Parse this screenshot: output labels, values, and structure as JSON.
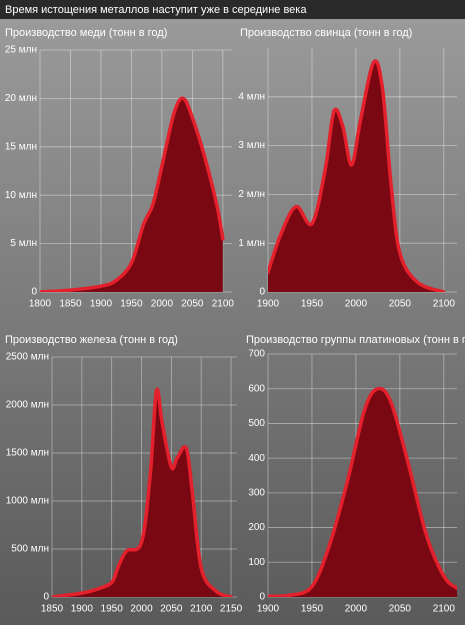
{
  "header": {
    "title": "Время истощения металлов наступит уже в середине века"
  },
  "chart_data": [
    {
      "type": "area",
      "title": "Производство меди (тонн в год)",
      "x": [
        1800,
        1850,
        1900,
        1925,
        1950,
        1970,
        1985,
        2000,
        2020,
        2035,
        2050,
        2070,
        2090,
        2100
      ],
      "values": [
        0,
        0.2,
        0.6,
        1.2,
        3,
        7,
        9,
        13,
        18.5,
        20,
        18,
        14,
        9,
        5.5
      ],
      "xlim": [
        1800,
        2115
      ],
      "ylim": [
        0,
        25
      ],
      "xticks": [
        1800,
        1850,
        1900,
        1950,
        2000,
        2050,
        2100
      ],
      "yticks": [
        0,
        {
          "value": 5,
          "label": "5 млн"
        },
        {
          "value": 10,
          "label": "10 млн"
        },
        {
          "value": 15,
          "label": "15 млн"
        },
        {
          "value": 20,
          "label": "20 млн"
        },
        {
          "value": 25,
          "label": "25 млн"
        }
      ],
      "color": "#7a0812",
      "line_color": "#e4202c",
      "grid": true
    },
    {
      "type": "area",
      "title": "Производство свинца (тонн в год)",
      "x": [
        1900,
        1915,
        1932,
        1950,
        1965,
        1975,
        1985,
        1995,
        2005,
        2020,
        2030,
        2040,
        2050,
        2070,
        2100
      ],
      "values": [
        0.4,
        1.2,
        1.75,
        1.4,
        2.5,
        3.7,
        3.4,
        2.6,
        3.5,
        4.7,
        4.2,
        2.2,
        0.8,
        0.2,
        0
      ],
      "xlim": [
        1900,
        2115
      ],
      "ylim": [
        0,
        5
      ],
      "xticks": [
        1900,
        1950,
        2000,
        2050,
        2100
      ],
      "yticks": [
        0,
        {
          "value": 1,
          "label": "1 млн"
        },
        {
          "value": 2,
          "label": "2 млн"
        },
        {
          "value": 3,
          "label": "3 млн"
        },
        {
          "value": 4,
          "label": "4 млн"
        }
      ],
      "color": "#7a0812",
      "line_color": "#e4202c",
      "grid": true
    },
    {
      "type": "area",
      "title": "Производство железа (тонн в год)",
      "x": [
        1850,
        1900,
        1925,
        1950,
        1960,
        1975,
        2000,
        2015,
        2025,
        2035,
        2050,
        2060,
        2075,
        2085,
        2100,
        2125,
        2150
      ],
      "values": [
        0,
        40,
        80,
        150,
        300,
        480,
        570,
        1300,
        2150,
        1800,
        1350,
        1450,
        1550,
        1100,
        300,
        60,
        0
      ],
      "xlim": [
        1850,
        2160
      ],
      "ylim": [
        0,
        2500
      ],
      "xticks": [
        1850,
        1900,
        1950,
        2000,
        2050,
        2100,
        2150
      ],
      "yticks": [
        0,
        {
          "value": 500,
          "label": "500 млн"
        },
        {
          "value": 1000,
          "label": "1000 млн"
        },
        {
          "value": 1500,
          "label": "1500 млн"
        },
        {
          "value": 2000,
          "label": "2000 млн"
        },
        {
          "value": 2500,
          "label": "2500 млн"
        }
      ],
      "color": "#7a0812",
      "line_color": "#e4202c",
      "grid": true
    },
    {
      "type": "area",
      "title": "Производство группы платиновых (тонн в год)",
      "x": [
        1900,
        1925,
        1950,
        1970,
        1990,
        2010,
        2025,
        2040,
        2060,
        2080,
        2100,
        2115
      ],
      "values": [
        2,
        5,
        30,
        150,
        330,
        540,
        600,
        560,
        380,
        180,
        60,
        25
      ],
      "xlim": [
        1900,
        2115
      ],
      "ylim": [
        0,
        700
      ],
      "xticks": [
        1900,
        1950,
        2000,
        2050,
        2100
      ],
      "yticks": [
        0,
        100,
        200,
        300,
        400,
        500,
        600,
        700
      ],
      "color": "#7a0812",
      "line_color": "#e4202c",
      "grid": true
    }
  ]
}
